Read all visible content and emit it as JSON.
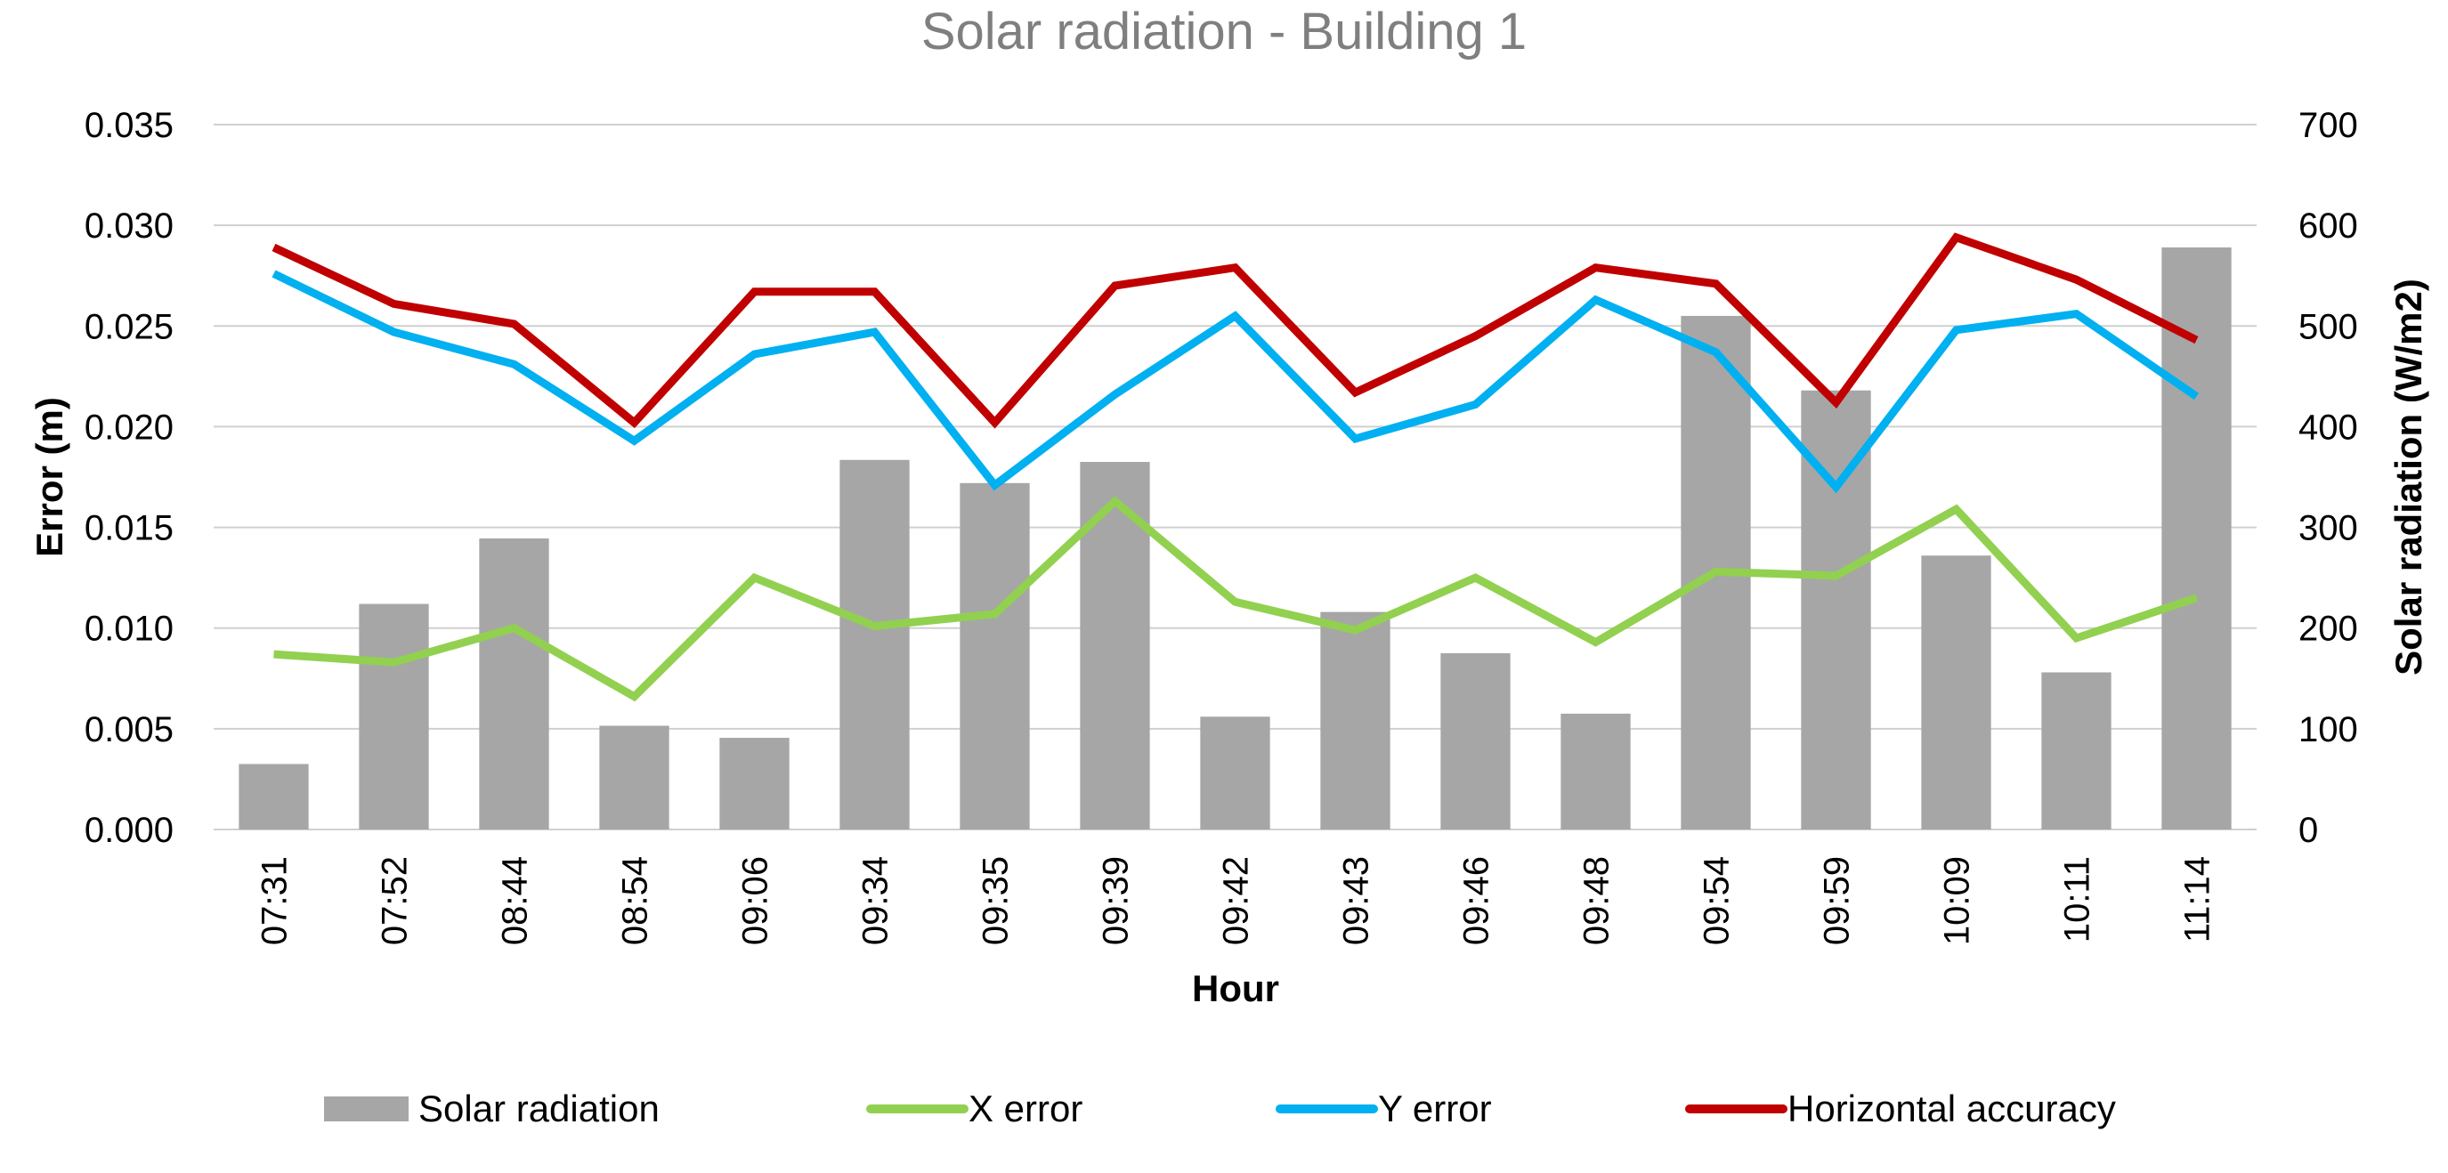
{
  "chart_data": {
    "type": "bar+line",
    "title": "Solar radiation - Building 1",
    "xlabel": "Hour",
    "ylabel_left": "Error (m)",
    "ylabel_right": "Solar radiation (W/m2)",
    "categories": [
      "07:31",
      "07:52",
      "08:44",
      "08:54",
      "09:06",
      "09:34",
      "09:35",
      "09:39",
      "09:42",
      "09:43",
      "09:46",
      "09:48",
      "09:54",
      "09:59",
      "10:09",
      "10:11",
      "11:14"
    ],
    "left_axis": {
      "min": 0,
      "max": 0.035,
      "ticks": [
        "0.000",
        "0.005",
        "0.010",
        "0.015",
        "0.020",
        "0.025",
        "0.030",
        "0.035"
      ]
    },
    "right_axis": {
      "min": 0,
      "max": 700,
      "ticks": [
        "0",
        "100",
        "200",
        "300",
        "400",
        "500",
        "600",
        "700"
      ]
    },
    "bars": {
      "name": "Solar radiation",
      "axis": "right",
      "color": "#a6a6a6",
      "values": [
        65,
        224,
        289,
        103,
        91,
        367,
        344,
        365,
        112,
        216,
        175,
        115,
        510,
        436,
        272,
        156,
        578
      ]
    },
    "series": [
      {
        "name": "X error",
        "axis": "left",
        "color": "#92d050",
        "values": [
          0.0087,
          0.0083,
          0.01,
          0.0066,
          0.0125,
          0.0101,
          0.0107,
          0.0163,
          0.0113,
          0.0099,
          0.0125,
          0.0093,
          0.0128,
          0.0126,
          0.0159,
          0.0095,
          0.0115
        ]
      },
      {
        "name": "Y error",
        "axis": "left",
        "color": "#00b0f0",
        "values": [
          0.0276,
          0.0247,
          0.0231,
          0.0193,
          0.0236,
          0.0247,
          0.0171,
          0.0216,
          0.0255,
          0.0194,
          0.0211,
          0.0263,
          0.0237,
          0.017,
          0.0248,
          0.0256,
          0.0215
        ]
      },
      {
        "name": "Horizontal accuracy",
        "axis": "left",
        "color": "#c00000",
        "values": [
          0.0289,
          0.0261,
          0.0251,
          0.0202,
          0.0267,
          0.0267,
          0.0202,
          0.027,
          0.0279,
          0.0217,
          0.0245,
          0.0279,
          0.0271,
          0.0212,
          0.0294,
          0.0273,
          0.0243
        ]
      }
    ],
    "legend": [
      "Solar radiation",
      "X error",
      "Y error",
      "Horizontal accuracy"
    ],
    "grid": true,
    "legend_position": "bottom"
  }
}
